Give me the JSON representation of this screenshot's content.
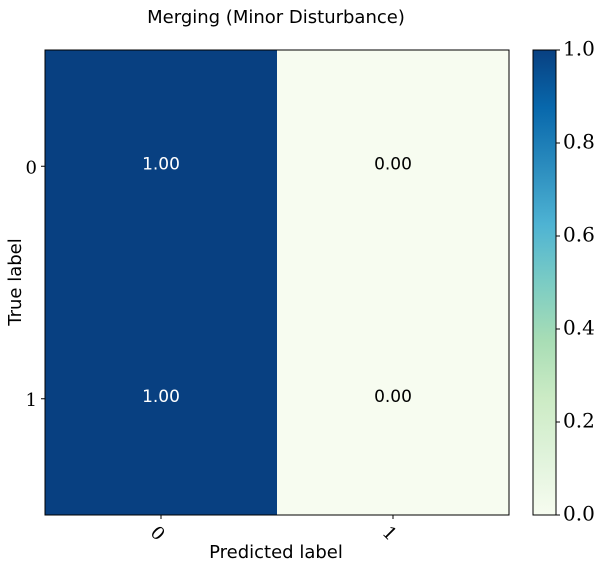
{
  "chart_data": {
    "type": "heatmap",
    "title": "Merging (Minor Disturbance)",
    "xlabel": "Predicted label",
    "ylabel": "True label",
    "x_categories": [
      "0",
      "1"
    ],
    "y_categories": [
      "0",
      "1"
    ],
    "values": [
      [
        1.0,
        0.0
      ],
      [
        1.0,
        0.0
      ]
    ],
    "cell_labels": [
      [
        "1.00",
        "0.00"
      ],
      [
        "1.00",
        "0.00"
      ]
    ],
    "colormap": "GnBu",
    "colorbar": {
      "range": [
        0.0,
        1.0
      ],
      "ticks": [
        "0.0",
        "0.2",
        "0.4",
        "0.6",
        "0.8",
        "1.0"
      ]
    },
    "grid": false,
    "colors": {
      "low": "#f7fcf0",
      "high": "#084081",
      "text_on_dark": "#ffffff",
      "text_on_light": "#000000"
    }
  }
}
